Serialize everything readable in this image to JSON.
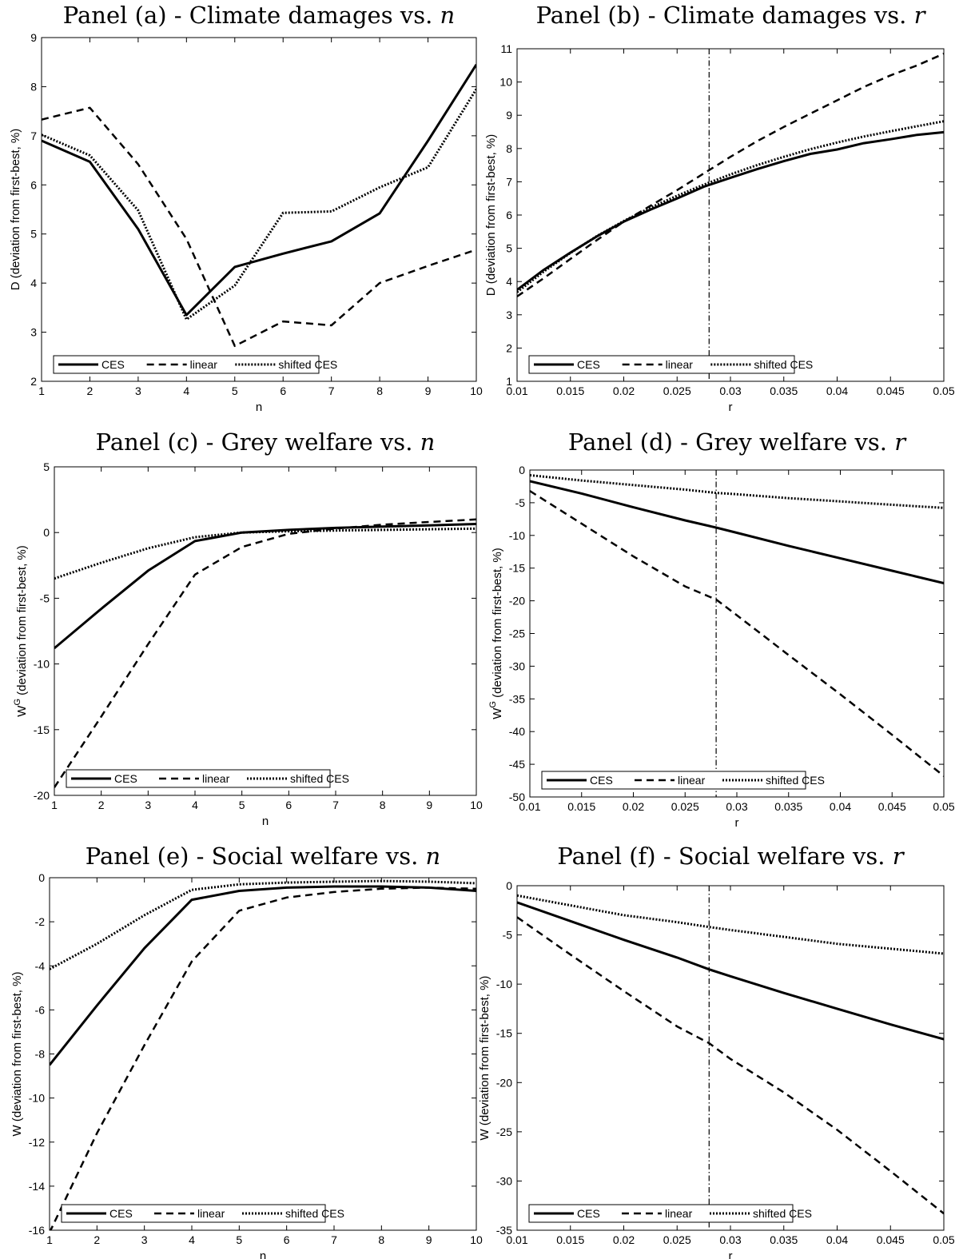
{
  "styles": {
    "CES": {
      "dash": "",
      "width": 3
    },
    "linear": {
      "dash": "9,6",
      "width": 2.5
    },
    "shifted CES": {
      "dash": "2,2",
      "width": 3
    },
    "color": "#000000"
  },
  "chart_data": [
    {
      "type": "line",
      "title_prefix": "Panel (a) - Climate damages vs. ",
      "title_var": "n",
      "xlabel": "n",
      "ylabel": "D (deviation from first-best, %)",
      "xlim": [
        1,
        10
      ],
      "ylim": [
        2,
        9
      ],
      "xticks": [
        1,
        2,
        3,
        4,
        5,
        6,
        7,
        8,
        9,
        10
      ],
      "xtick_labels": [
        "1",
        "2",
        "3",
        "4",
        "5",
        "6",
        "7",
        "8",
        "9",
        "10"
      ],
      "yticks": [
        2,
        3,
        4,
        5,
        6,
        7,
        8,
        9
      ],
      "ytick_labels": [
        "2",
        "3",
        "4",
        "5",
        "6",
        "7",
        "8",
        "9"
      ],
      "legend": "bottom-left",
      "x": [
        1,
        2,
        3,
        4,
        5,
        6,
        7,
        8,
        9,
        10
      ],
      "series": [
        {
          "name": "CES",
          "values": [
            6.9,
            6.47,
            5.1,
            3.35,
            4.33,
            4.6,
            4.85,
            5.42,
            6.9,
            8.45
          ]
        },
        {
          "name": "linear",
          "values": [
            7.33,
            7.57,
            6.42,
            4.9,
            2.72,
            3.22,
            3.14,
            4.0,
            4.35,
            4.68
          ]
        },
        {
          "name": "shifted CES",
          "values": [
            7.02,
            6.6,
            5.48,
            3.26,
            3.95,
            5.43,
            5.46,
            5.95,
            6.36,
            7.95
          ]
        }
      ]
    },
    {
      "type": "line",
      "title_prefix": "Panel (b) - Climate damages vs. ",
      "title_var": "r",
      "xlabel": "r",
      "ylabel": "D (deviation from first-best, %)",
      "xlim": [
        0.01,
        0.05
      ],
      "ylim": [
        1,
        11
      ],
      "xticks": [
        0.01,
        0.015,
        0.02,
        0.025,
        0.03,
        0.035,
        0.04,
        0.045,
        0.05
      ],
      "xtick_labels": [
        "0.01",
        "0.015",
        "0.02",
        "0.025",
        "0.03",
        "0.035",
        "0.04",
        "0.045",
        "0.05"
      ],
      "yticks": [
        1,
        2,
        3,
        4,
        5,
        6,
        7,
        8,
        9,
        10,
        11
      ],
      "ytick_labels": [
        "1",
        "2",
        "3",
        "4",
        "5",
        "6",
        "7",
        "8",
        "9",
        "10",
        "11"
      ],
      "vline": 0.028,
      "legend": "bottom-left",
      "x": [
        0.01,
        0.0125,
        0.015,
        0.0175,
        0.02,
        0.0225,
        0.025,
        0.0275,
        0.03,
        0.0325,
        0.035,
        0.0375,
        0.04,
        0.0425,
        0.045,
        0.0475,
        0.05
      ],
      "series": [
        {
          "name": "CES",
          "values": [
            3.75,
            4.35,
            4.87,
            5.36,
            5.8,
            6.16,
            6.5,
            6.85,
            7.12,
            7.38,
            7.62,
            7.84,
            7.97,
            8.16,
            8.28,
            8.41,
            8.49
          ]
        },
        {
          "name": "linear",
          "values": [
            3.55,
            4.1,
            4.68,
            5.25,
            5.8,
            6.28,
            6.75,
            7.25,
            7.75,
            8.22,
            8.65,
            9.05,
            9.45,
            9.85,
            10.2,
            10.5,
            10.85
          ]
        },
        {
          "name": "shifted CES",
          "values": [
            3.68,
            4.3,
            4.86,
            5.37,
            5.82,
            6.22,
            6.58,
            6.91,
            7.22,
            7.5,
            7.75,
            7.98,
            8.18,
            8.36,
            8.52,
            8.67,
            8.82
          ]
        }
      ]
    },
    {
      "type": "line",
      "title_prefix": "Panel (c) - Grey welfare vs. ",
      "title_var": "n",
      "xlabel": "n",
      "ylabel": "W",
      "ylabel_sup": "G",
      "ylabel_rest": " (deviation from first-best, %)",
      "xlim": [
        1,
        10
      ],
      "ylim": [
        -20,
        5
      ],
      "xticks": [
        1,
        2,
        3,
        4,
        5,
        6,
        7,
        8,
        9,
        10
      ],
      "xtick_labels": [
        "1",
        "2",
        "3",
        "4",
        "5",
        "6",
        "7",
        "8",
        "9",
        "10"
      ],
      "yticks": [
        -20,
        -15,
        -10,
        -5,
        0,
        5
      ],
      "ytick_labels": [
        "-20",
        "-15",
        "-10",
        "-5",
        "0",
        "5"
      ],
      "legend": "bottom-left",
      "x": [
        1,
        2,
        3,
        4,
        5,
        6,
        7,
        8,
        9,
        10
      ],
      "series": [
        {
          "name": "CES",
          "values": [
            -8.8,
            -5.8,
            -2.9,
            -0.65,
            0.0,
            0.2,
            0.35,
            0.45,
            0.55,
            0.65
          ]
        },
        {
          "name": "linear",
          "values": [
            -19.4,
            -14.0,
            -8.5,
            -3.2,
            -1.1,
            -0.1,
            0.3,
            0.6,
            0.8,
            1.0
          ]
        },
        {
          "name": "shifted CES",
          "values": [
            -3.5,
            -2.3,
            -1.2,
            -0.35,
            0.0,
            0.1,
            0.15,
            0.2,
            0.25,
            0.3
          ]
        }
      ]
    },
    {
      "type": "line",
      "title_prefix": "Panel (d) - Grey welfare vs. ",
      "title_var": "r",
      "xlabel": "r",
      "ylabel": "W",
      "ylabel_sup": "G",
      "ylabel_rest": " (deviation from first-best, %)",
      "xlim": [
        0.01,
        0.05
      ],
      "ylim": [
        -50,
        0
      ],
      "xticks": [
        0.01,
        0.015,
        0.02,
        0.025,
        0.03,
        0.035,
        0.04,
        0.045,
        0.05
      ],
      "xtick_labels": [
        "0.01",
        "0.015",
        "0.02",
        "0.025",
        "0.03",
        "0.035",
        "0.04",
        "0.045",
        "0.05"
      ],
      "yticks": [
        -50,
        -45,
        -40,
        -35,
        -30,
        -25,
        -20,
        -15,
        -10,
        -5,
        0
      ],
      "ytick_labels": [
        "-50",
        "-45",
        "-40",
        "-35",
        "-30",
        "-25",
        "-20",
        "-15",
        "-10",
        "-5",
        "0"
      ],
      "vline": 0.028,
      "legend": "bottom-left",
      "x": [
        0.01,
        0.015,
        0.02,
        0.025,
        0.028,
        0.03,
        0.035,
        0.04,
        0.045,
        0.05
      ],
      "series": [
        {
          "name": "CES",
          "values": [
            -1.7,
            -3.6,
            -5.7,
            -7.7,
            -8.8,
            -9.6,
            -11.6,
            -13.5,
            -15.4,
            -17.3
          ]
        },
        {
          "name": "linear",
          "values": [
            -3.2,
            -8.2,
            -13.2,
            -17.8,
            -19.8,
            -22.2,
            -28.3,
            -34.3,
            -40.5,
            -46.8
          ]
        },
        {
          "name": "shifted CES",
          "values": [
            -0.8,
            -1.6,
            -2.3,
            -3.0,
            -3.5,
            -3.7,
            -4.3,
            -4.8,
            -5.3,
            -5.8
          ]
        }
      ]
    },
    {
      "type": "line",
      "title_prefix": "Panel (e) - Social welfare vs. ",
      "title_var": "n",
      "xlabel": "n",
      "ylabel": "W (deviation from first-best, %)",
      "xlim": [
        1,
        10
      ],
      "ylim": [
        -16,
        0
      ],
      "xticks": [
        1,
        2,
        3,
        4,
        5,
        6,
        7,
        8,
        9,
        10
      ],
      "xtick_labels": [
        "1",
        "2",
        "3",
        "4",
        "5",
        "6",
        "7",
        "8",
        "9",
        "10"
      ],
      "yticks": [
        -16,
        -14,
        -12,
        -10,
        -8,
        -6,
        -4,
        -2,
        0
      ],
      "ytick_labels": [
        "-16",
        "-14",
        "-12",
        "-10",
        "-8",
        "-6",
        "-4",
        "-2",
        "0"
      ],
      "legend": "bottom-left",
      "x": [
        1,
        2,
        3,
        4,
        5,
        6,
        7,
        8,
        9,
        10
      ],
      "series": [
        {
          "name": "CES",
          "values": [
            -8.5,
            -5.8,
            -3.2,
            -1.0,
            -0.6,
            -0.45,
            -0.4,
            -0.4,
            -0.45,
            -0.6
          ]
        },
        {
          "name": "linear",
          "values": [
            -16.1,
            -11.6,
            -7.6,
            -3.8,
            -1.5,
            -0.9,
            -0.65,
            -0.5,
            -0.45,
            -0.5
          ]
        },
        {
          "name": "shifted CES",
          "values": [
            -4.15,
            -3.0,
            -1.7,
            -0.55,
            -0.3,
            -0.22,
            -0.18,
            -0.15,
            -0.18,
            -0.25
          ]
        }
      ]
    },
    {
      "type": "line",
      "title_prefix": "Panel (f) - Social welfare vs. ",
      "title_var": "r",
      "xlabel": "r",
      "ylabel": "W (deviation from first-best, %)",
      "xlim": [
        0.01,
        0.05
      ],
      "ylim": [
        -35,
        0
      ],
      "xticks": [
        0.01,
        0.015,
        0.02,
        0.025,
        0.03,
        0.035,
        0.04,
        0.045,
        0.05
      ],
      "xtick_labels": [
        "0.01",
        "0.015",
        "0.02",
        "0.025",
        "0.03",
        "0.035",
        "0.04",
        "0.045",
        "0.05"
      ],
      "yticks": [
        -35,
        -30,
        -25,
        -20,
        -15,
        -10,
        -5,
        0
      ],
      "ytick_labels": [
        "-35",
        "-30",
        "-25",
        "-20",
        "-15",
        "-10",
        "-5",
        "0"
      ],
      "vline": 0.028,
      "legend": "bottom-left",
      "x": [
        0.01,
        0.015,
        0.02,
        0.025,
        0.028,
        0.03,
        0.035,
        0.04,
        0.045,
        0.05
      ],
      "series": [
        {
          "name": "CES",
          "values": [
            -1.7,
            -3.6,
            -5.5,
            -7.3,
            -8.5,
            -9.2,
            -10.9,
            -12.5,
            -14.1,
            -15.6
          ]
        },
        {
          "name": "linear",
          "values": [
            -3.2,
            -7.0,
            -10.7,
            -14.3,
            -16.0,
            -17.6,
            -21.0,
            -24.8,
            -29.0,
            -33.3
          ]
        },
        {
          "name": "shifted CES",
          "values": [
            -1.0,
            -2.0,
            -3.0,
            -3.7,
            -4.2,
            -4.5,
            -5.2,
            -5.9,
            -6.4,
            -6.9
          ]
        }
      ]
    }
  ]
}
